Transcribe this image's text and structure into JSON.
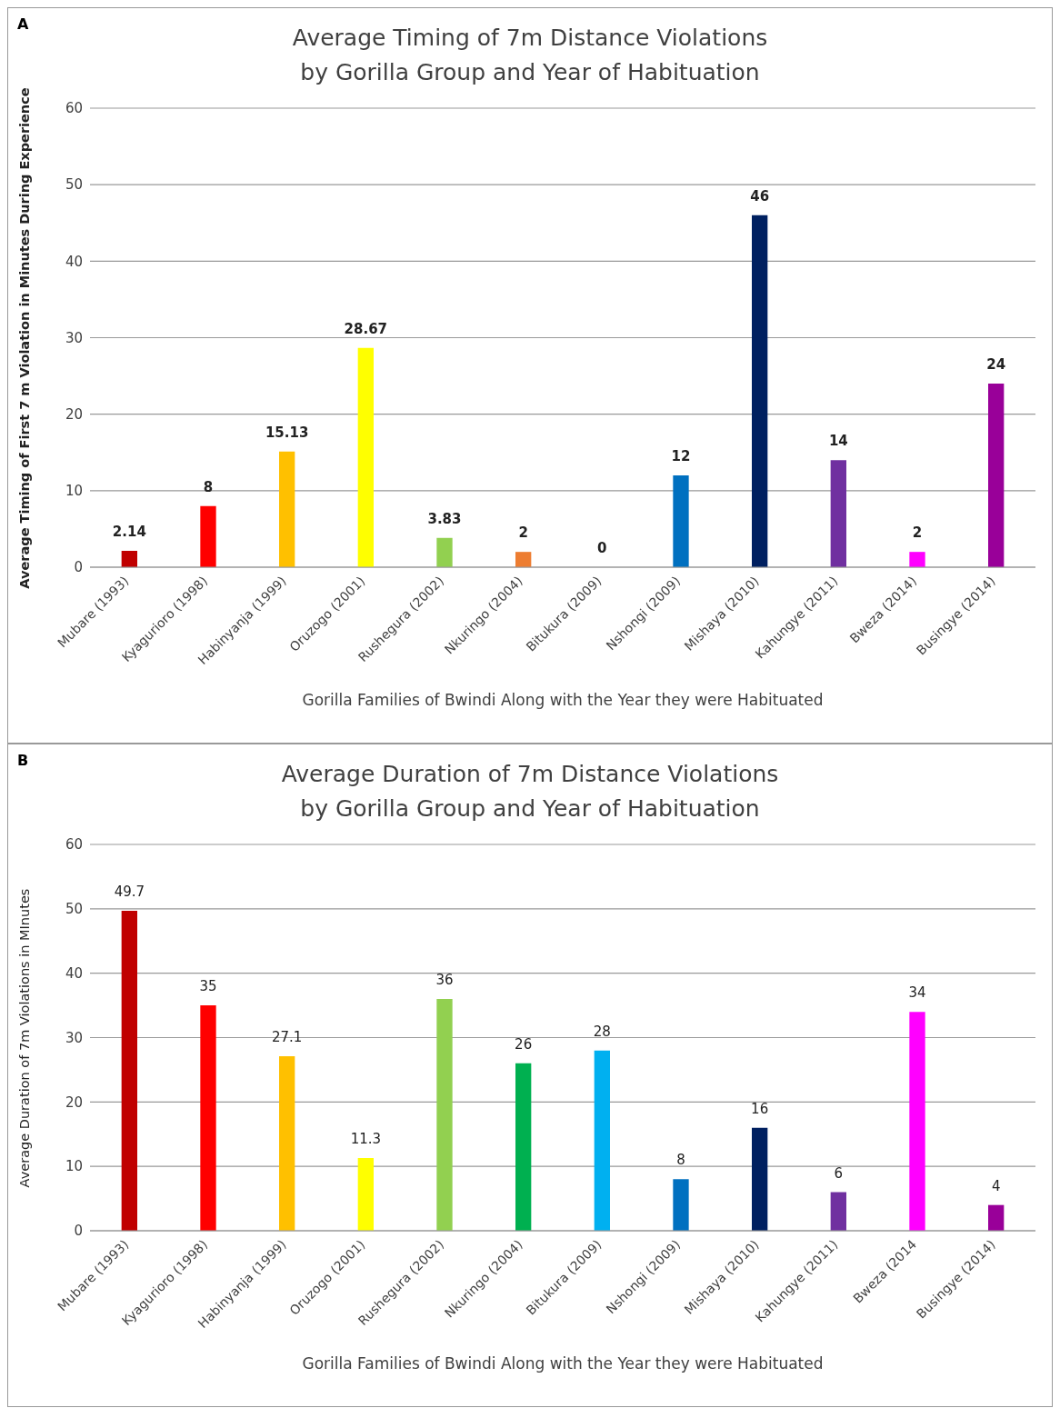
{
  "chart_data": [
    {
      "type": "bar",
      "title": "Average Timing of 7m Distance Violations\nby Gorilla Group and Year of Habituation",
      "xlabel": "Gorilla Families of Bwindi Along with the Year they  were Habituated",
      "ylabel": "Average Timing of First 7 m Violation in Minutes During Experience",
      "annotations": [
        "A"
      ],
      "categories": [
        "Mubare (1993)",
        "Kyagurioro (1998)",
        "Habinyanja (1999)",
        "Oruzogo (2001)",
        "Rushegura (2002)",
        "Nkuringo (2004)",
        "Bitukura (2009)",
        "Nshongi (2009)",
        "Mishaya (2010)",
        "Kahungye (2011)",
        "Bweza (2014)",
        "Busingye (2014)"
      ],
      "values": [
        2.14,
        8,
        15.13,
        28.67,
        3.83,
        2,
        0,
        12,
        46,
        14,
        2,
        24
      ],
      "colors": [
        "#c00000",
        "#ff0000",
        "#ffc000",
        "#ffff00",
        "#92d050",
        "#ed7d31",
        "#00b0f0",
        "#0070c0",
        "#002060",
        "#7030a0",
        "#ff00ff",
        "#990099"
      ],
      "ylim": [
        0,
        60
      ],
      "yticks": [
        0,
        10,
        20,
        30,
        40,
        50,
        60
      ],
      "grid": "y",
      "data_labels": true
    },
    {
      "type": "bar",
      "title": "Average Duration of 7m Distance Violations\nby Gorilla Group and Year of Habituation",
      "xlabel": "Gorilla Families of Bwindi Along with the Year they  were Habituated",
      "ylabel": "Average Duration of 7m Violations in MInutes",
      "annotations": [
        "B"
      ],
      "categories": [
        "Mubare (1993)",
        "Kyagurioro (1998)",
        "Habinyanja (1999)",
        "Oruzogo (2001)",
        "Rushegura (2002)",
        "Nkuringo (2004)",
        "Bitukura (2009)",
        "Nshongi (2009)",
        "Mishaya (2010)",
        "Kahungye (2011)",
        "Bweza (2014",
        "Busingye (2014)"
      ],
      "values": [
        49.7,
        35,
        27.1,
        11.3,
        36,
        26,
        28,
        8,
        16,
        6,
        34,
        4
      ],
      "colors": [
        "#c00000",
        "#ff0000",
        "#ffc000",
        "#ffff00",
        "#92d050",
        "#00b050",
        "#00b0f0",
        "#0070c0",
        "#002060",
        "#7030a0",
        "#ff00ff",
        "#990099"
      ],
      "ylim": [
        0,
        60
      ],
      "yticks": [
        0,
        10,
        20,
        30,
        40,
        50,
        60
      ],
      "grid": "y",
      "data_labels": true
    }
  ]
}
